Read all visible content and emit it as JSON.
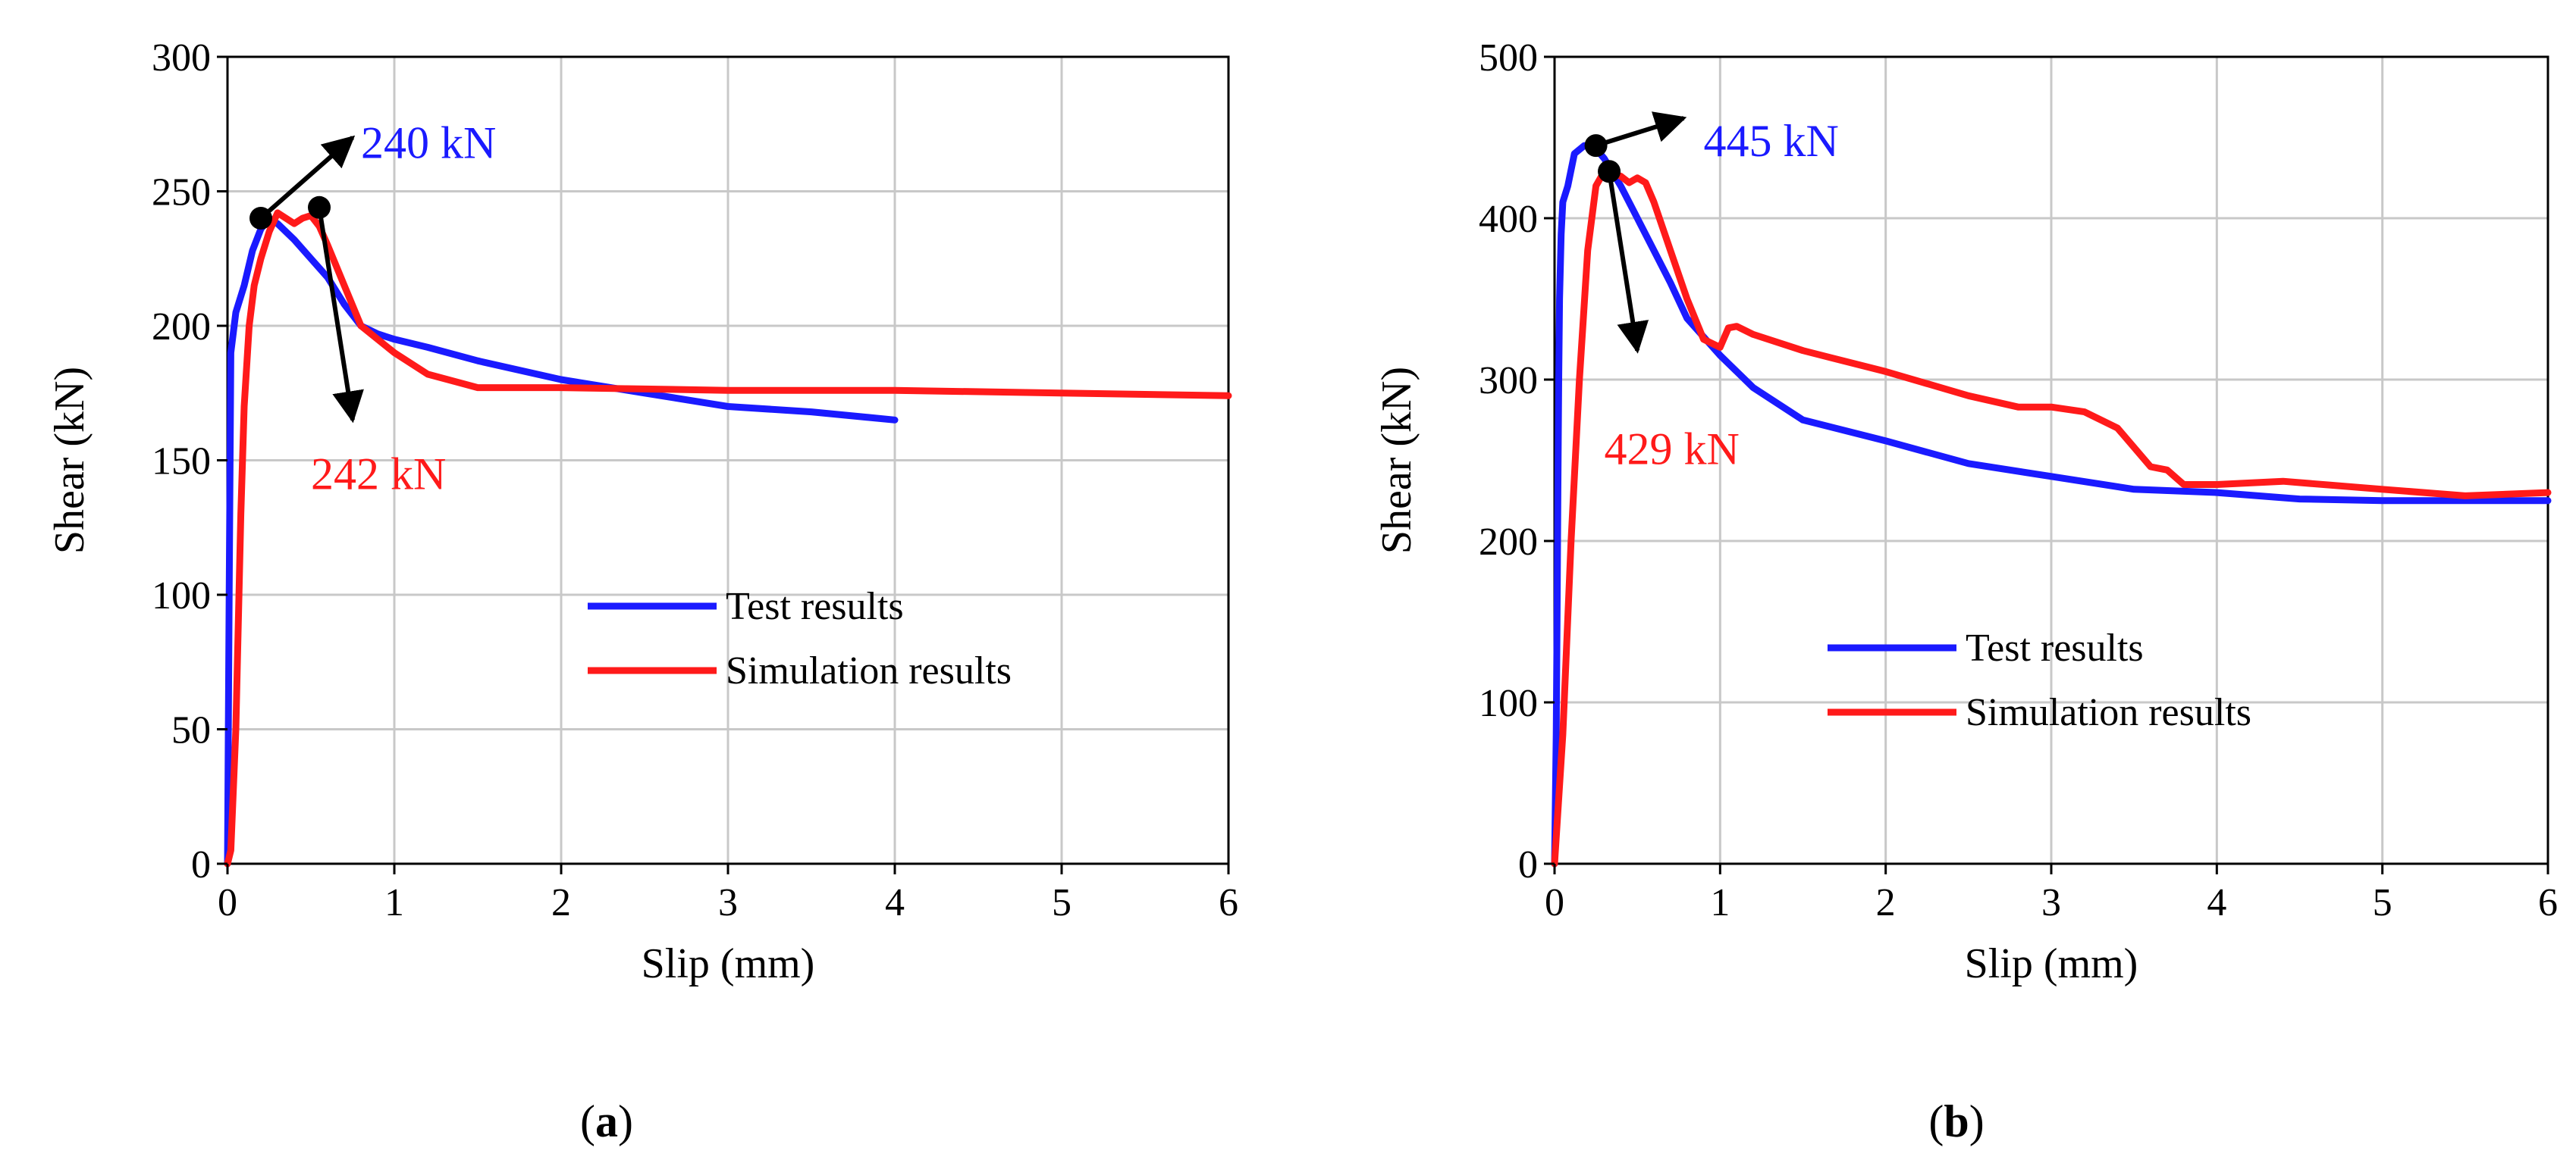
{
  "colors": {
    "test": "#1a1aff",
    "sim": "#ff1a1a",
    "grid": "#c8c8c8",
    "axis": "#000000",
    "arrow": "#000000"
  },
  "chart_data": [
    {
      "id": "a",
      "type": "line",
      "panel_prefix": "(",
      "panel_letter": "a",
      "panel_suffix": ")",
      "xlabel": "Slip (mm)",
      "ylabel": "Shear (kN)",
      "xlim": [
        0,
        6
      ],
      "ylim": [
        0,
        300
      ],
      "xticks": [
        "0",
        "1",
        "2",
        "3",
        "4",
        "5",
        "6"
      ],
      "yticks": [
        "0",
        "50",
        "100",
        "150",
        "200",
        "250",
        "300"
      ],
      "legend_position": "lower-right",
      "series": [
        {
          "name": "Test results",
          "color_key": "test",
          "x": [
            0,
            0.01,
            0.02,
            0.05,
            0.1,
            0.15,
            0.2,
            0.25,
            0.3,
            0.4,
            0.5,
            0.6,
            0.7,
            0.8,
            0.9,
            1.0,
            1.2,
            1.5,
            2.0,
            2.5,
            3.0,
            3.5,
            4.0
          ],
          "y": [
            0,
            100,
            190,
            205,
            215,
            228,
            236,
            240,
            238,
            232,
            225,
            218,
            208,
            200,
            197,
            195,
            192,
            187,
            180,
            175,
            170,
            168,
            165
          ]
        },
        {
          "name": "Simulation results",
          "color_key": "sim",
          "x": [
            0,
            0.02,
            0.05,
            0.08,
            0.1,
            0.13,
            0.16,
            0.2,
            0.25,
            0.3,
            0.35,
            0.4,
            0.45,
            0.5,
            0.55,
            0.6,
            0.7,
            0.8,
            0.9,
            1.0,
            1.2,
            1.5,
            2.0,
            3.0,
            4.0,
            5.0,
            6.0
          ],
          "y": [
            0,
            5,
            50,
            130,
            170,
            200,
            215,
            225,
            235,
            242,
            240,
            238,
            240,
            241,
            237,
            230,
            215,
            200,
            195,
            190,
            182,
            177,
            177,
            176,
            176,
            175,
            174
          ]
        }
      ],
      "annotations": [
        {
          "label": "240 kN",
          "x": 0.2,
          "y": 240,
          "dx": 0.75,
          "dy": 270,
          "tx": 0.8,
          "ty": 268,
          "color_key": "test",
          "anchor": "start"
        },
        {
          "label": "242 kN",
          "x": 0.55,
          "y": 244,
          "dx": 0.75,
          "dy": 165,
          "tx": 0.5,
          "ty": 145,
          "color_key": "sim",
          "anchor": "start"
        }
      ]
    },
    {
      "id": "b",
      "type": "line",
      "panel_prefix": "(",
      "panel_letter": "b",
      "panel_suffix": ")",
      "xlabel": "Slip (mm)",
      "ylabel": "Shear (kN)",
      "xlim": [
        0,
        6
      ],
      "ylim": [
        0,
        500
      ],
      "xticks": [
        "0",
        "1",
        "2",
        "3",
        "4",
        "5",
        "6"
      ],
      "yticks": [
        "0",
        "100",
        "200",
        "300",
        "400",
        "500"
      ],
      "legend_position": "lower-center",
      "series": [
        {
          "name": "Test results",
          "color_key": "test",
          "x": [
            0,
            0.01,
            0.015,
            0.02,
            0.025,
            0.03,
            0.04,
            0.05,
            0.08,
            0.12,
            0.18,
            0.25,
            0.3,
            0.4,
            0.5,
            0.6,
            0.7,
            0.8,
            1.0,
            1.2,
            1.5,
            2.0,
            2.5,
            3.0,
            3.5,
            4.0,
            4.5,
            5.0,
            6.0
          ],
          "y": [
            0,
            80,
            150,
            230,
            300,
            350,
            390,
            410,
            420,
            440,
            445,
            443,
            437,
            420,
            400,
            380,
            360,
            338,
            315,
            295,
            275,
            262,
            248,
            240,
            232,
            230,
            226,
            225,
            225
          ]
        },
        {
          "name": "Simulation results",
          "color_key": "sim",
          "x": [
            0,
            0.05,
            0.1,
            0.15,
            0.2,
            0.25,
            0.3,
            0.35,
            0.4,
            0.45,
            0.5,
            0.55,
            0.6,
            0.7,
            0.8,
            0.9,
            1.0,
            1.05,
            1.1,
            1.2,
            1.5,
            2.0,
            2.5,
            2.8,
            3.0,
            3.2,
            3.4,
            3.6,
            3.7,
            3.8,
            4.0,
            4.4,
            5.0,
            5.5,
            6.0
          ],
          "y": [
            0,
            80,
            200,
            300,
            380,
            420,
            429,
            428,
            426,
            422,
            425,
            422,
            410,
            380,
            350,
            325,
            320,
            332,
            333,
            328,
            318,
            305,
            290,
            283,
            283,
            280,
            270,
            246,
            244,
            235,
            235,
            237,
            232,
            228,
            230
          ]
        }
      ],
      "annotations": [
        {
          "label": "445 kN",
          "x": 0.25,
          "y": 445,
          "dx": 0.78,
          "dy": 462,
          "tx": 0.9,
          "ty": 448,
          "color_key": "test",
          "anchor": "start"
        },
        {
          "label": "429 kN",
          "x": 0.33,
          "y": 429,
          "dx": 0.5,
          "dy": 318,
          "tx": 0.3,
          "ty": 257,
          "color_key": "sim",
          "anchor": "start"
        }
      ]
    }
  ]
}
